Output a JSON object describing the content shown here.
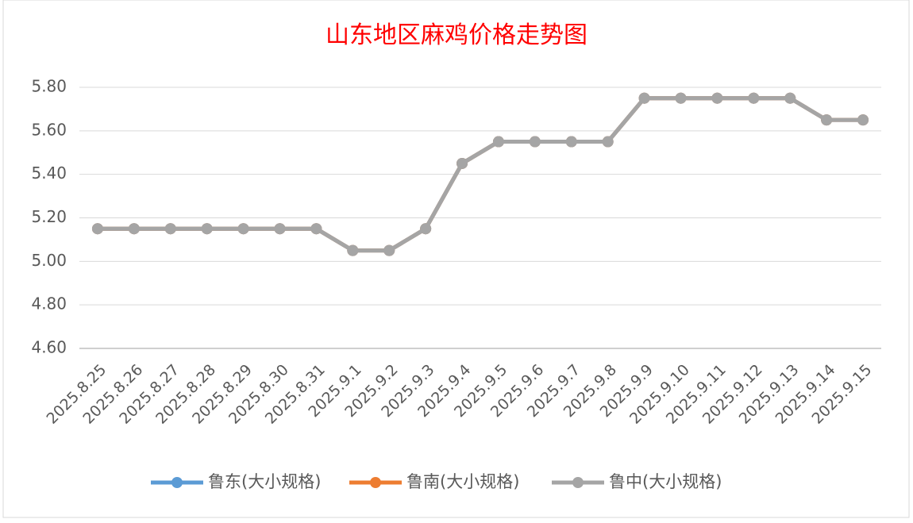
{
  "chart_data": {
    "type": "line",
    "title": "山东地区麻鸡价格走势图",
    "categories": [
      "2025.8.25",
      "2025.8.26",
      "2025.8.27",
      "2025.8.28",
      "2025.8.29",
      "2025.8.30",
      "2025.8.31",
      "2025.9.1",
      "2025.9.2",
      "2025.9.3",
      "2025.9.4",
      "2025.9.5",
      "2025.9.6",
      "2025.9.7",
      "2025.9.8",
      "2025.9.9",
      "2025.9.10",
      "2025.9.11",
      "2025.9.12",
      "2025.9.13",
      "2025.9.14",
      "2025.9.15"
    ],
    "series": [
      {
        "name": "鲁东(大小规格)",
        "color": "#5b9bd5",
        "values": [
          5.15,
          5.15,
          5.15,
          5.15,
          5.15,
          5.15,
          5.15,
          5.05,
          5.05,
          5.15,
          5.45,
          5.55,
          5.55,
          5.55,
          5.55,
          5.75,
          5.75,
          5.75,
          5.75,
          5.75,
          5.65,
          5.65
        ]
      },
      {
        "name": "鲁南(大小规格)",
        "color": "#ed7d31",
        "values": [
          5.15,
          5.15,
          5.15,
          5.15,
          5.15,
          5.15,
          5.15,
          5.05,
          5.05,
          5.15,
          5.45,
          5.55,
          5.55,
          5.55,
          5.55,
          5.75,
          5.75,
          5.75,
          5.75,
          5.75,
          5.65,
          5.65
        ]
      },
      {
        "name": "鲁中(大小规格)",
        "color": "#a5a5a5",
        "values": [
          5.15,
          5.15,
          5.15,
          5.15,
          5.15,
          5.15,
          5.15,
          5.05,
          5.05,
          5.15,
          5.45,
          5.55,
          5.55,
          5.55,
          5.55,
          5.75,
          5.75,
          5.75,
          5.75,
          5.75,
          5.65,
          5.65
        ]
      }
    ],
    "ylim": [
      4.6,
      5.8
    ],
    "yticks": [
      {
        "value": 4.6,
        "label": "4.60"
      },
      {
        "value": 4.8,
        "label": "4.80"
      },
      {
        "value": 5.0,
        "label": "5.00"
      },
      {
        "value": 5.2,
        "label": "5.20"
      },
      {
        "value": 5.4,
        "label": "5.40"
      },
      {
        "value": 5.6,
        "label": "5.60"
      },
      {
        "value": 5.8,
        "label": "5.80"
      }
    ],
    "grid": true,
    "legend": "bottom"
  }
}
